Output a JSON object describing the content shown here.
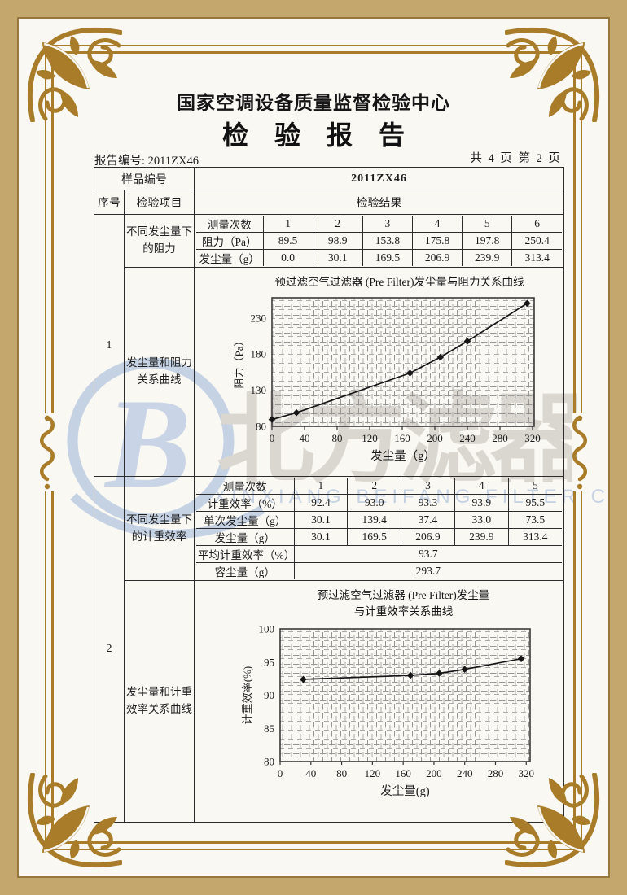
{
  "header": {
    "org_title": "国家空调设备质量监督检验中心",
    "report_title": "检　验　报　告",
    "report_no_line": "报告编号: 2011ZX46",
    "page_no_line": "共 4 页 第 2 页"
  },
  "table": {
    "sample_no_label": "样品编号",
    "sample_no_value": "2011ZX46",
    "col_seq": "序号",
    "col_item": "检验项目",
    "col_result": "检验结果",
    "section1": {
      "seq": "1",
      "item_a": "不同发尘量下的阻力",
      "item_b": "发尘量和阻力关系曲线"
    },
    "section2": {
      "seq": "2",
      "item_a": "不同发尘量下的计重效率",
      "item_b": "发尘量和计重效率关系曲线"
    }
  },
  "tables": {
    "resistance": {
      "row_labels": [
        "测量次数",
        "阻力（Pa）",
        "发尘量（g）"
      ],
      "columns": [
        "1",
        "2",
        "3",
        "4",
        "5",
        "6"
      ],
      "resistance_pa": [
        "89.5",
        "98.9",
        "153.8",
        "175.8",
        "197.8",
        "250.4"
      ],
      "dust_g": [
        "0.0",
        "30.1",
        "169.5",
        "206.9",
        "239.9",
        "313.4"
      ]
    },
    "efficiency": {
      "row_labels": [
        "测量次数",
        "计重效率（%）",
        "单次发尘量（g）",
        "发尘量（g）",
        "平均计重效率（%）",
        "容尘量（g）"
      ],
      "columns": [
        "1",
        "2",
        "3",
        "4",
        "5"
      ],
      "efficiency_pct": [
        "92.4",
        "93.0",
        "93.3",
        "93.9",
        "95.5"
      ],
      "single_dust_g": [
        "30.1",
        "139.4",
        "37.4",
        "33.0",
        "73.5"
      ],
      "cumulative_dust_g": [
        "30.1",
        "169.5",
        "206.9",
        "239.9",
        "313.4"
      ],
      "avg_efficiency": "93.7",
      "dust_capacity": "293.7"
    }
  },
  "chart_data": [
    {
      "type": "line",
      "title": "预过滤空气过滤器 (Pre Filter)发尘量与阻力关系曲线",
      "xlabel": "发尘量（g）",
      "ylabel": "阻力（Pa）",
      "x": [
        0,
        30.1,
        169.5,
        206.9,
        239.9,
        313.4
      ],
      "y": [
        89.5,
        98.9,
        153.8,
        175.8,
        197.8,
        250.4
      ],
      "xticks": [
        0,
        40,
        80,
        120,
        160,
        200,
        240,
        280,
        320
      ],
      "yticks": [
        80,
        130,
        180,
        230
      ],
      "xlim": [
        0,
        322
      ],
      "ylim": [
        80,
        258
      ],
      "grid": true,
      "marker": "diamond",
      "line_color": "#151515"
    },
    {
      "type": "line",
      "title_lines": [
        "预过滤空气过滤器 (Pre Filter)发尘量",
        "与计重效率关系曲线"
      ],
      "xlabel": "发尘量(g)",
      "ylabel": "计重效率(%)",
      "x": [
        30.1,
        169.5,
        206.9,
        239.9,
        313.4
      ],
      "y": [
        92.4,
        93.0,
        93.3,
        93.9,
        95.5
      ],
      "xticks": [
        0,
        40,
        80,
        120,
        160,
        200,
        240,
        280,
        320
      ],
      "yticks": [
        80,
        85,
        90,
        95,
        100
      ],
      "xlim": [
        0,
        325
      ],
      "ylim": [
        80,
        100
      ],
      "grid": true,
      "marker": "diamond",
      "line_color": "#151515"
    }
  ],
  "watermark": {
    "logo_letter": "B",
    "brand_text": "北方滤器",
    "company_en": "XINXIANG BEIFANG FILTER CO.,LTD.",
    "logo_blue": "#c5d2e4",
    "brand_gray": "#dad7d1"
  },
  "colors": {
    "frame_gold": "#a87c28",
    "band_tan": "#c3a76d",
    "ink": "#1d1d1d",
    "paper": "#f9f8f3"
  }
}
